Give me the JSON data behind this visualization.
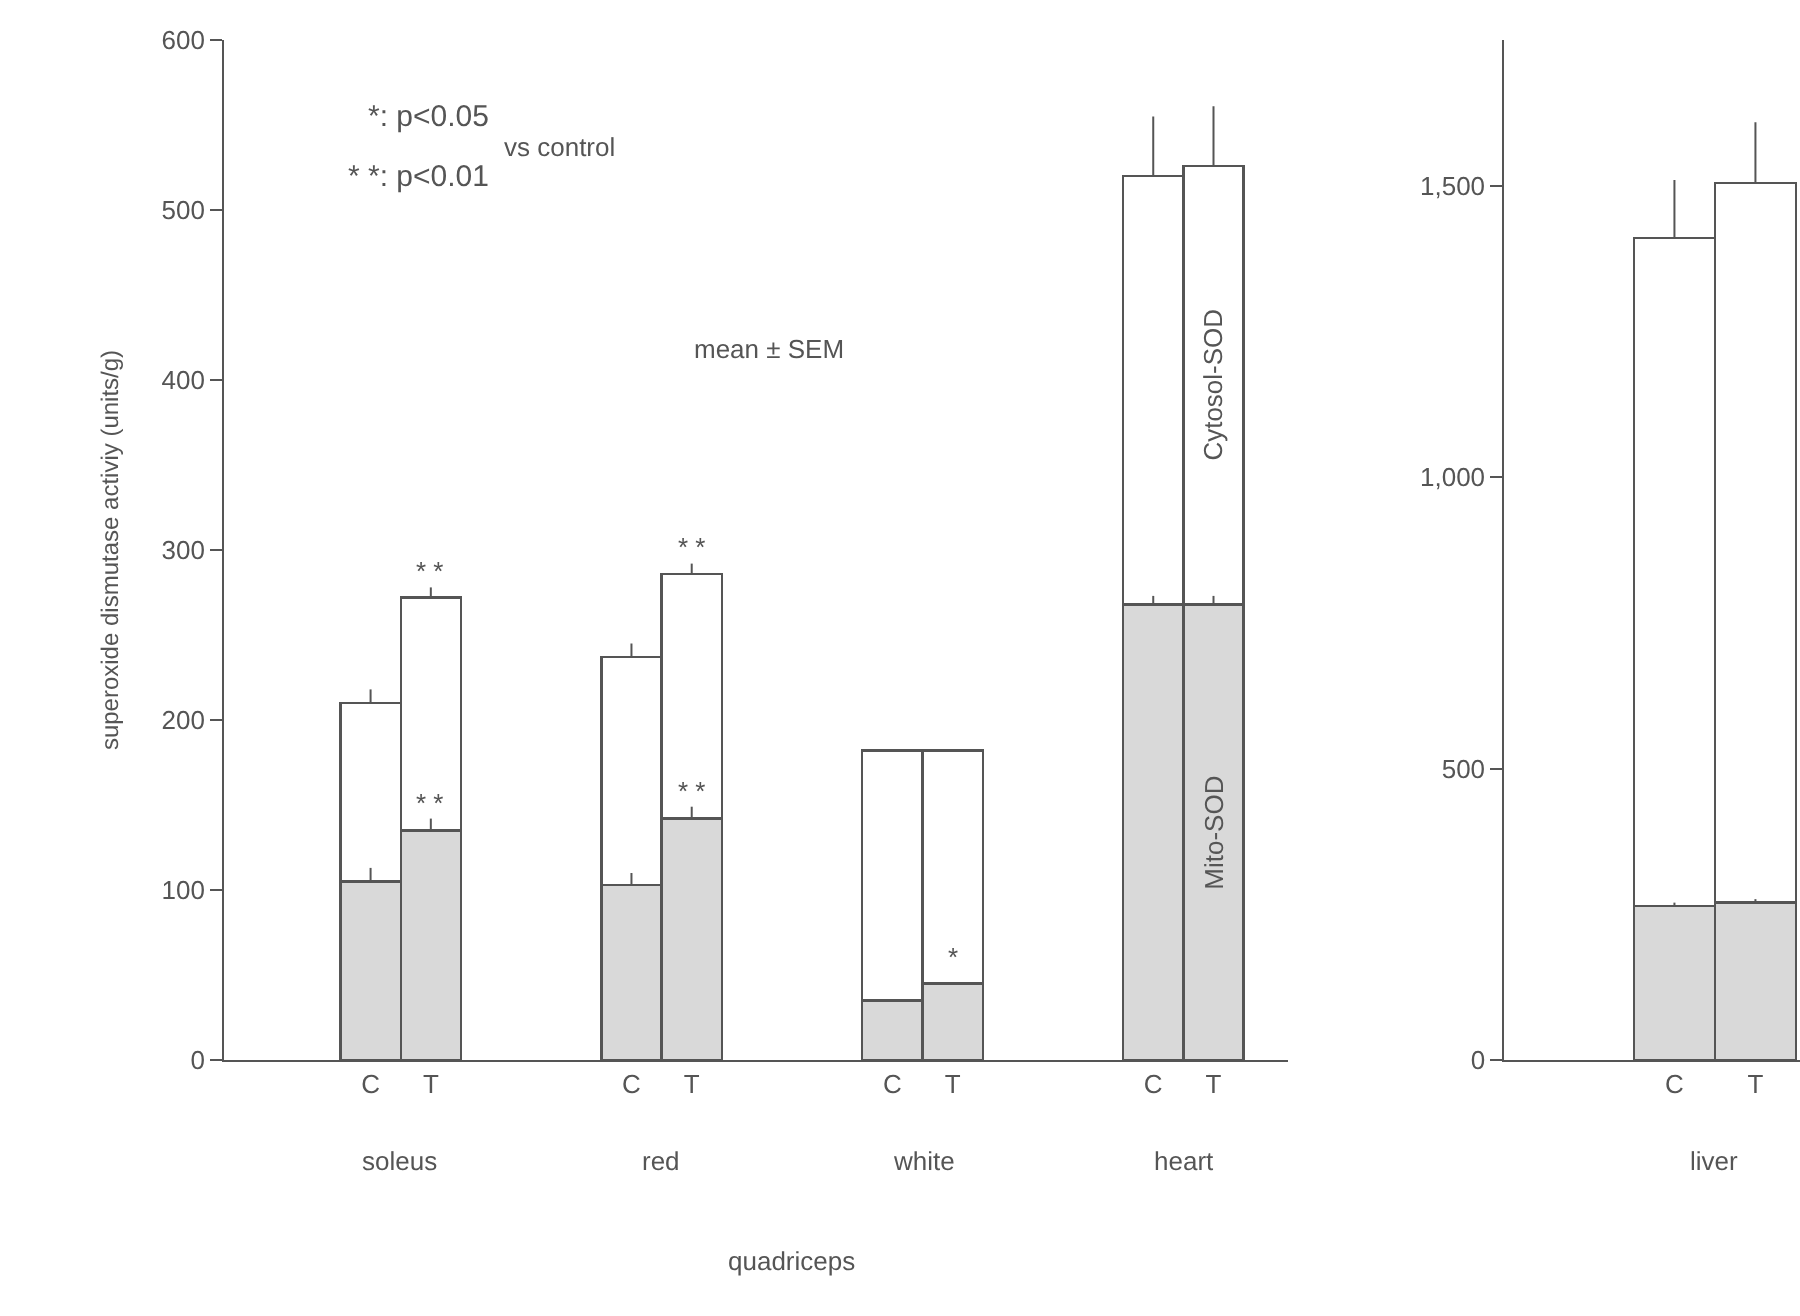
{
  "chart_data": [
    {
      "type": "bar",
      "stacked": true,
      "ylabel": "superoxide dismutase activiy (units/g)",
      "categories": [
        "C",
        "T",
        "C",
        "T",
        "C",
        "T",
        "C",
        "T"
      ],
      "ylim": [
        0,
        600
      ],
      "yticks": [
        0,
        100,
        200,
        300,
        400,
        500,
        600
      ],
      "series": [
        {
          "name": "Mito-SOD",
          "color": "#d9d9d9",
          "values": [
            105,
            135,
            103,
            142,
            35,
            45,
            268,
            268
          ],
          "errors": [
            [
              105,
              113
            ],
            [
              135,
              142
            ],
            [
              103,
              110
            ],
            [
              142,
              149
            ],
            null,
            null,
            [
              268,
              273
            ],
            [
              268,
              273
            ]
          ],
          "value_labels": [
            null,
            "* *",
            null,
            "* *",
            null,
            "*",
            null,
            null
          ]
        },
        {
          "name": "Cytosol-SOD",
          "color": "#ffffff",
          "values": [
            105,
            137,
            134,
            144,
            147,
            137,
            252,
            258
          ],
          "errors": [
            [
              210,
              218
            ],
            [
              272,
              278
            ],
            [
              237,
              245
            ],
            [
              286,
              292
            ],
            null,
            null,
            [
              520,
              555
            ],
            [
              526,
              561
            ]
          ],
          "value_labels": [
            null,
            "* *",
            null,
            "* *",
            null,
            null,
            null,
            null
          ]
        }
      ],
      "annotations": [
        "soleus",
        "red",
        "white",
        "heart",
        "quadriceps",
        "*: p<0.05",
        "* *: p<0.01",
        "vs control",
        "mean ± SEM"
      ]
    },
    {
      "type": "bar",
      "stacked": true,
      "categories": [
        "C",
        "T"
      ],
      "ylim": [
        0,
        1750
      ],
      "yticks": [
        0,
        500,
        {
          "value": 1000,
          "label": "1,000"
        },
        {
          "value": 1500,
          "label": "1,500"
        }
      ],
      "series": [
        {
          "color": "#d9d9d9",
          "values": [
            264,
            270
          ],
          "errors": [
            [
              264,
              270
            ],
            [
              270,
              276
            ]
          ]
        },
        {
          "color": "#ffffff",
          "values": [
            1146,
            1235
          ],
          "errors": [
            [
              1410,
              1510
            ],
            [
              1505,
              1609
            ]
          ]
        }
      ],
      "annotations": [
        "liver"
      ]
    }
  ]
}
